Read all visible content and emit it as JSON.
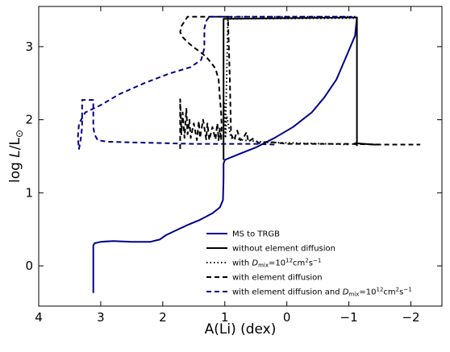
{
  "chart_data": {
    "type": "line",
    "xlabel": "A(Li) (dex)",
    "ylabel_parts": {
      "prefix": "log ",
      "italic": "L",
      "suffix": "/L",
      "subscript": "⊙"
    },
    "xlim": [
      4.0,
      -2.5
    ],
    "ylim": [
      -0.55,
      3.55
    ],
    "x_ticks": [
      4,
      3,
      2,
      1,
      0,
      -1,
      -2
    ],
    "x_tick_labels": [
      "4",
      "3",
      "2",
      "1",
      "0",
      "−1",
      "−2"
    ],
    "y_ticks": [
      0,
      1,
      2,
      3
    ],
    "y_tick_labels": [
      "0",
      "1",
      "2",
      "3"
    ],
    "grid": false,
    "legend_position": "lower-right",
    "series": [
      {
        "name": "MS to TRGB",
        "legend": {
          "plain": "MS to TRGB"
        },
        "color": "#00008b",
        "dash": "solid",
        "x": [
          3.12,
          3.12,
          3.12,
          3.1,
          3.0,
          2.8,
          2.5,
          2.2,
          2.05,
          1.95,
          1.8,
          1.6,
          1.4,
          1.2,
          1.08,
          1.03,
          1.02,
          1.02,
          1.0,
          0.8,
          0.5,
          0.2,
          -0.1,
          -0.4,
          -0.6,
          -0.8,
          -0.95,
          -1.1,
          -1.13
        ],
        "y": [
          -0.37,
          0.0,
          0.28,
          0.31,
          0.33,
          0.34,
          0.33,
          0.33,
          0.36,
          0.42,
          0.48,
          0.56,
          0.63,
          0.72,
          0.8,
          0.9,
          1.2,
          1.4,
          1.45,
          1.52,
          1.62,
          1.75,
          1.9,
          2.1,
          2.3,
          2.55,
          2.85,
          3.15,
          3.4
        ]
      },
      {
        "name": "without element diffusion",
        "legend": {
          "plain": "without element diffusion"
        },
        "color": "#000000",
        "dash": "solid",
        "x": [
          1.02,
          1.02,
          1.02,
          -1.13,
          -1.13,
          -1.13,
          -1.1,
          -1.25,
          -1.4,
          -1.5
        ],
        "y": [
          1.45,
          2.5,
          3.38,
          3.4,
          2.2,
          1.65,
          1.68,
          1.67,
          1.66,
          1.66
        ]
      },
      {
        "name": "with Dmix=10^12 cm2 s-1",
        "legend": {
          "pre": "with ",
          "italic": "D",
          "sub": "mix",
          "mid": "=10",
          "sup1": "12",
          "mid2": "cm",
          "sup2": "2",
          "mid3": "s",
          "sup3": "−1"
        },
        "color": "#000000",
        "dash": "dotted",
        "x": [
          1.02,
          0.8,
          0.5,
          0.0,
          -0.5,
          -1.0,
          -1.13,
          -1.13,
          0.95,
          0.97,
          0.99,
          1.01,
          0.99,
          0.97,
          0.9,
          0.7,
          0.3,
          -0.2,
          -0.7,
          -1.0
        ],
        "y": [
          3.38,
          3.41,
          3.41,
          3.41,
          3.41,
          3.41,
          3.41,
          3.39,
          3.38,
          2.6,
          1.8,
          2.25,
          1.75,
          2.05,
          1.75,
          1.72,
          1.69,
          1.68,
          1.67,
          1.66
        ]
      },
      {
        "name": "with element diffusion",
        "legend": {
          "plain": "with element diffusion"
        },
        "color": "#000000",
        "dash": "dashed",
        "x": [
          1.72,
          1.72,
          1.7,
          1.68,
          1.65,
          1.62,
          1.6,
          1.57,
          1.55,
          1.5,
          1.45,
          1.42,
          1.4,
          1.35,
          1.3,
          1.28,
          1.25,
          1.2,
          1.15,
          1.12,
          1.1,
          1.08,
          1.06,
          1.05,
          1.06,
          1.08,
          1.1,
          1.15,
          1.22,
          1.3,
          1.4,
          1.5,
          1.6,
          1.68,
          1.72,
          1.7,
          1.6,
          1.3,
          1.05,
          1.0,
          0.95,
          0.92,
          0.9,
          0.85,
          0.8,
          0.75,
          0.7,
          0.65,
          0.62,
          0.55,
          0.45,
          0.3,
          0.0,
          -0.5,
          -1.0,
          -1.5,
          -2.0,
          -2.15
        ],
        "y": [
          1.6,
          2.28,
          1.8,
          2.1,
          1.75,
          2.15,
          1.8,
          2.0,
          1.75,
          1.95,
          1.72,
          1.98,
          1.75,
          2.0,
          1.73,
          1.95,
          1.72,
          1.9,
          1.73,
          1.95,
          1.72,
          1.88,
          1.72,
          1.9,
          2.1,
          2.3,
          2.55,
          2.7,
          2.78,
          2.86,
          2.93,
          2.99,
          3.06,
          3.13,
          3.2,
          3.28,
          3.41,
          3.41,
          3.41,
          3.41,
          3.41,
          2.6,
          1.8,
          1.72,
          1.85,
          1.72,
          1.75,
          1.83,
          1.7,
          1.74,
          1.68,
          1.7,
          1.67,
          1.67,
          1.67,
          1.66,
          1.66,
          1.66
        ]
      },
      {
        "name": "with element diffusion and Dmix=10^12 cm2 s-1",
        "legend": {
          "pre": "with element diffusion and ",
          "italic": "D",
          "sub": "mix",
          "mid": "=10",
          "sup1": "12",
          "mid2": "cm",
          "sup2": "2",
          "mid3": "s",
          "sup3": "−1"
        },
        "color": "#00008b",
        "dash": "dashed",
        "x": [
          0.2,
          0.5,
          1.0,
          1.5,
          2.0,
          2.5,
          2.9,
          3.05,
          3.1,
          3.12,
          3.12,
          3.12,
          3.2,
          3.3,
          3.3,
          3.3,
          3.32,
          3.35,
          3.37,
          3.35,
          3.25,
          3.0,
          2.7,
          2.3,
          1.9,
          1.55,
          1.38,
          1.33,
          1.33,
          1.3,
          1.25,
          1.2,
          1.1,
          1.0,
          0.5,
          0.0,
          -0.5,
          -1.0,
          -1.13
        ],
        "y": [
          1.66,
          1.67,
          1.67,
          1.67,
          1.68,
          1.69,
          1.7,
          1.72,
          1.8,
          1.9,
          2.1,
          2.27,
          2.27,
          2.27,
          2.1,
          1.9,
          1.75,
          1.6,
          1.75,
          1.95,
          2.1,
          2.2,
          2.35,
          2.5,
          2.63,
          2.72,
          2.82,
          2.98,
          3.25,
          3.35,
          3.41,
          3.41,
          3.41,
          3.41,
          3.41,
          3.41,
          3.41,
          3.41,
          3.39
        ]
      }
    ]
  }
}
